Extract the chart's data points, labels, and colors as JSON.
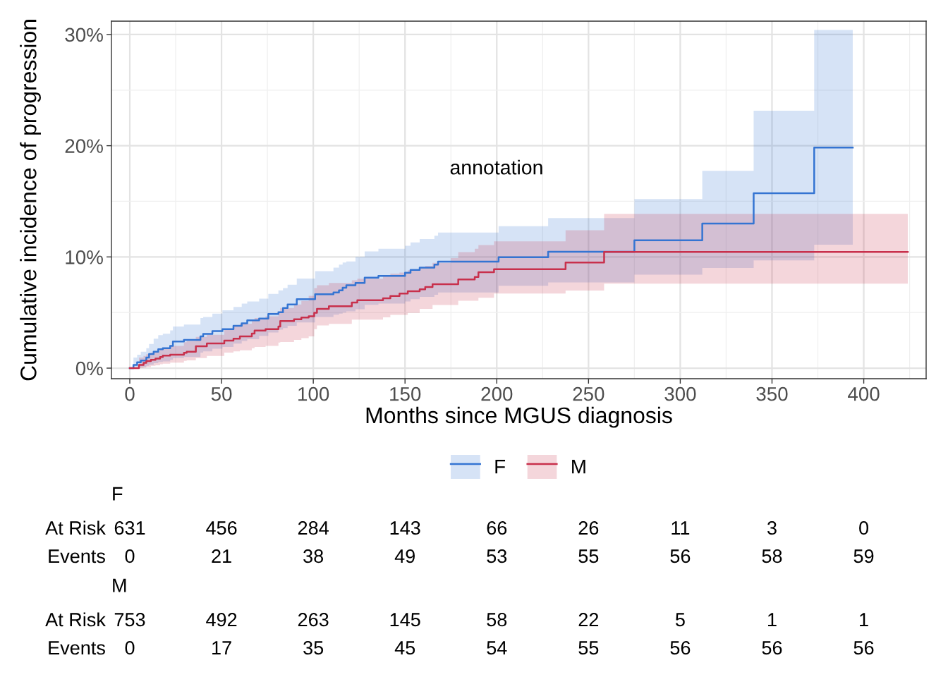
{
  "chart_data": [
    {
      "type": "step",
      "xlabel": "Months since MGUS diagnosis",
      "ylabel": "Cumulative incidence of progression",
      "xlim": [
        -10,
        434
      ],
      "xticks": [
        0,
        50,
        100,
        150,
        200,
        250,
        300,
        350,
        400
      ],
      "ylim": [
        -0.95,
        31.2
      ],
      "yticks": [
        {
          "value": 0,
          "label": "0%"
        },
        {
          "value": 10,
          "label": "10%"
        },
        {
          "value": 20,
          "label": "20%"
        },
        {
          "value": 30,
          "label": "30%"
        }
      ],
      "grid": true,
      "legend": "bottom",
      "annotations": [
        "annotation"
      ],
      "series": [
        {
          "name": "F",
          "color": "#3474d2",
          "x": [
            0,
            2,
            4,
            6,
            9,
            10.5,
            13,
            15.5,
            18,
            22,
            23.5,
            29.5,
            38.5,
            40,
            45,
            50.5,
            56.5,
            61,
            64,
            70.5,
            75.5,
            81,
            83.5,
            86,
            91,
            101,
            111,
            114,
            116,
            118,
            123,
            128,
            135.5,
            150,
            153,
            158,
            166,
            168,
            201,
            228,
            275,
            312,
            340,
            373,
            394
          ],
          "values": [
            0,
            0.28,
            0.53,
            0.68,
            0.95,
            1.27,
            1.48,
            1.7,
            1.8,
            2.0,
            2.39,
            2.54,
            2.86,
            3.07,
            3.33,
            3.5,
            3.81,
            4.03,
            4.3,
            4.45,
            4.87,
            5.02,
            5.4,
            5.72,
            6.2,
            6.64,
            6.8,
            7.0,
            7.23,
            7.45,
            7.66,
            8.13,
            8.3,
            8.57,
            8.83,
            9.04,
            9.3,
            9.57,
            9.98,
            10.47,
            11.5,
            13.0,
            15.72,
            19.83,
            19.83
          ],
          "lower": [
            0,
            0,
            0.05,
            0.1,
            0.2,
            0.3,
            0.45,
            0.55,
            0.6,
            0.75,
            0.9,
            1.0,
            1.4,
            1.5,
            1.75,
            1.9,
            2.2,
            2.45,
            2.6,
            2.9,
            3.2,
            3.45,
            3.6,
            3.8,
            4.1,
            4.6,
            4.8,
            4.9,
            5.0,
            5.1,
            5.3,
            5.7,
            5.8,
            6.0,
            6.2,
            6.4,
            6.6,
            6.8,
            7.4,
            7.7,
            8.4,
            9.0,
            9.68,
            11.1,
            11.1
          ],
          "upper": [
            0,
            0.95,
            1.2,
            1.48,
            1.8,
            2.18,
            2.65,
            2.97,
            3.1,
            3.39,
            3.75,
            3.92,
            4.5,
            4.6,
            4.9,
            5.2,
            5.5,
            5.8,
            6.0,
            6.25,
            6.67,
            7.0,
            7.2,
            7.5,
            8.05,
            8.72,
            9.04,
            9.3,
            9.5,
            9.6,
            10.0,
            10.5,
            10.74,
            11.0,
            11.3,
            11.6,
            11.9,
            12.2,
            12.77,
            13.5,
            15.2,
            17.74,
            23.14,
            30.4,
            30.4
          ]
        },
        {
          "name": "M",
          "color": "#c8304c",
          "x": [
            0,
            5,
            7.5,
            9,
            11.5,
            14,
            16.5,
            18,
            22,
            29.5,
            31,
            36,
            42,
            51.5,
            56.5,
            60,
            66.5,
            68,
            74,
            81,
            82,
            89.5,
            93.5,
            97.5,
            100.5,
            102,
            108.5,
            121,
            124,
            138,
            142,
            147,
            151.5,
            158,
            161,
            165,
            175,
            179,
            188,
            190,
            198.5,
            237.5,
            258.5,
            424
          ],
          "values": [
            0,
            0.28,
            0.47,
            0.64,
            0.74,
            0.85,
            1.0,
            1.12,
            1.2,
            1.38,
            1.48,
            1.97,
            2.22,
            2.48,
            2.65,
            2.86,
            3.11,
            3.37,
            3.5,
            3.75,
            4.24,
            4.39,
            4.55,
            4.66,
            4.98,
            5.32,
            5.57,
            5.9,
            6.1,
            6.28,
            6.49,
            6.7,
            6.91,
            7.09,
            7.3,
            7.55,
            7.55,
            7.98,
            8.19,
            8.62,
            8.9,
            9.5,
            10.45,
            10.45
          ],
          "lower": [
            0,
            0,
            0.05,
            0.1,
            0.2,
            0.25,
            0.35,
            0.4,
            0.5,
            0.65,
            0.7,
            0.9,
            1.1,
            1.4,
            1.5,
            1.6,
            1.8,
            1.9,
            2.0,
            2.3,
            2.35,
            2.54,
            2.7,
            2.86,
            3.5,
            3.83,
            3.98,
            4.36,
            4.36,
            4.57,
            4.79,
            4.79,
            4.96,
            5.32,
            5.32,
            5.68,
            5.68,
            6.06,
            6.06,
            6.32,
            6.7,
            6.98,
            7.6,
            7.6
          ],
          "upper": [
            0,
            0.95,
            1.1,
            1.25,
            1.38,
            1.5,
            1.7,
            1.8,
            2.0,
            2.33,
            2.45,
            2.8,
            3.0,
            3.5,
            3.8,
            4.0,
            4.34,
            4.5,
            4.66,
            5.0,
            5.4,
            5.72,
            6.04,
            6.5,
            7.2,
            7.45,
            7.66,
            7.9,
            8.04,
            8.3,
            8.5,
            8.6,
            8.8,
            9.04,
            9.2,
            9.47,
            9.9,
            10.43,
            10.74,
            11.06,
            11.4,
            12.4,
            13.88,
            13.88
          ]
        }
      ]
    },
    {
      "type": "other",
      "title": "F",
      "annotations": [
        "At Risk",
        "631",
        "456",
        "284",
        "143",
        "66",
        "26",
        "11",
        "3",
        "0",
        "Events",
        "0",
        "21",
        "38",
        "49",
        "53",
        "55",
        "56",
        "58",
        "59"
      ]
    },
    {
      "type": "other",
      "title": "M",
      "annotations": [
        "At Risk",
        "753",
        "492",
        "263",
        "145",
        "58",
        "22",
        "5",
        "1",
        "1",
        "Events",
        "0",
        "17",
        "35",
        "45",
        "54",
        "55",
        "56",
        "56",
        "56"
      ]
    }
  ]
}
